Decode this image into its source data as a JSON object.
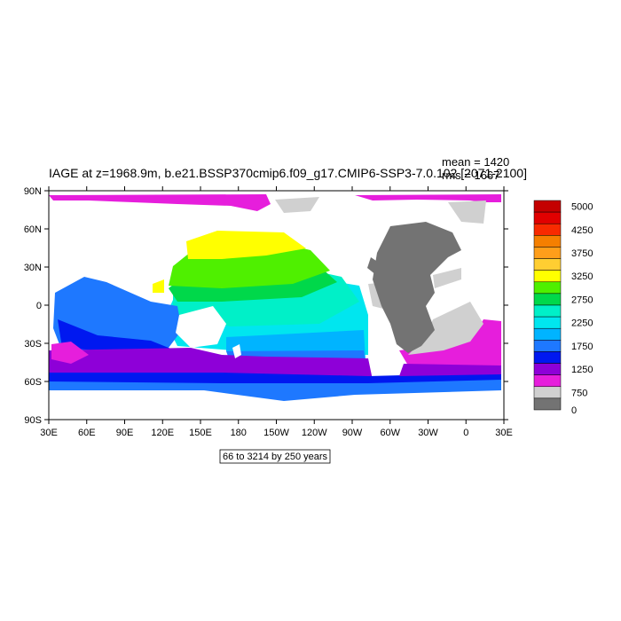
{
  "header": {
    "title": "IAGE at z=1968.9m, b.e21.BSSP370cmip6.f09_g17.CMIP6-SSP3-7.0.102 [2071-2100]",
    "mean": "mean = 1420",
    "rms": "rms = 1667"
  },
  "axes": {
    "lat_labels": [
      "90N",
      "60N",
      "30N",
      "0",
      "30S",
      "60S",
      "90S"
    ],
    "lon_labels": [
      "30E",
      "60E",
      "90E",
      "120E",
      "150E",
      "180",
      "150W",
      "120W",
      "90W",
      "60W",
      "30W",
      "0",
      "30E"
    ]
  },
  "colorbar": {
    "labels": [
      "5000",
      "4250",
      "3750",
      "3250",
      "2750",
      "2250",
      "1750",
      "1250",
      "750",
      "0"
    ],
    "colors": [
      "#c40000",
      "#e10000",
      "#f82a00",
      "#f57f00",
      "#ff9e1a",
      "#ffce32",
      "#ffff00",
      "#4ff000",
      "#00d84a",
      "#00f0c8",
      "#00e6ef",
      "#00b4ff",
      "#1e78ff",
      "#0018f0",
      "#8e00d8",
      "#e61edc",
      "#d0d0d0",
      "#737373"
    ]
  },
  "info": {
    "contour_text": "66 to 3214 by 250 years"
  },
  "colors": {
    "land": "#ffffff",
    "missing_land": "#737373",
    "sea_ice_gray": "#d0d0d0"
  }
}
